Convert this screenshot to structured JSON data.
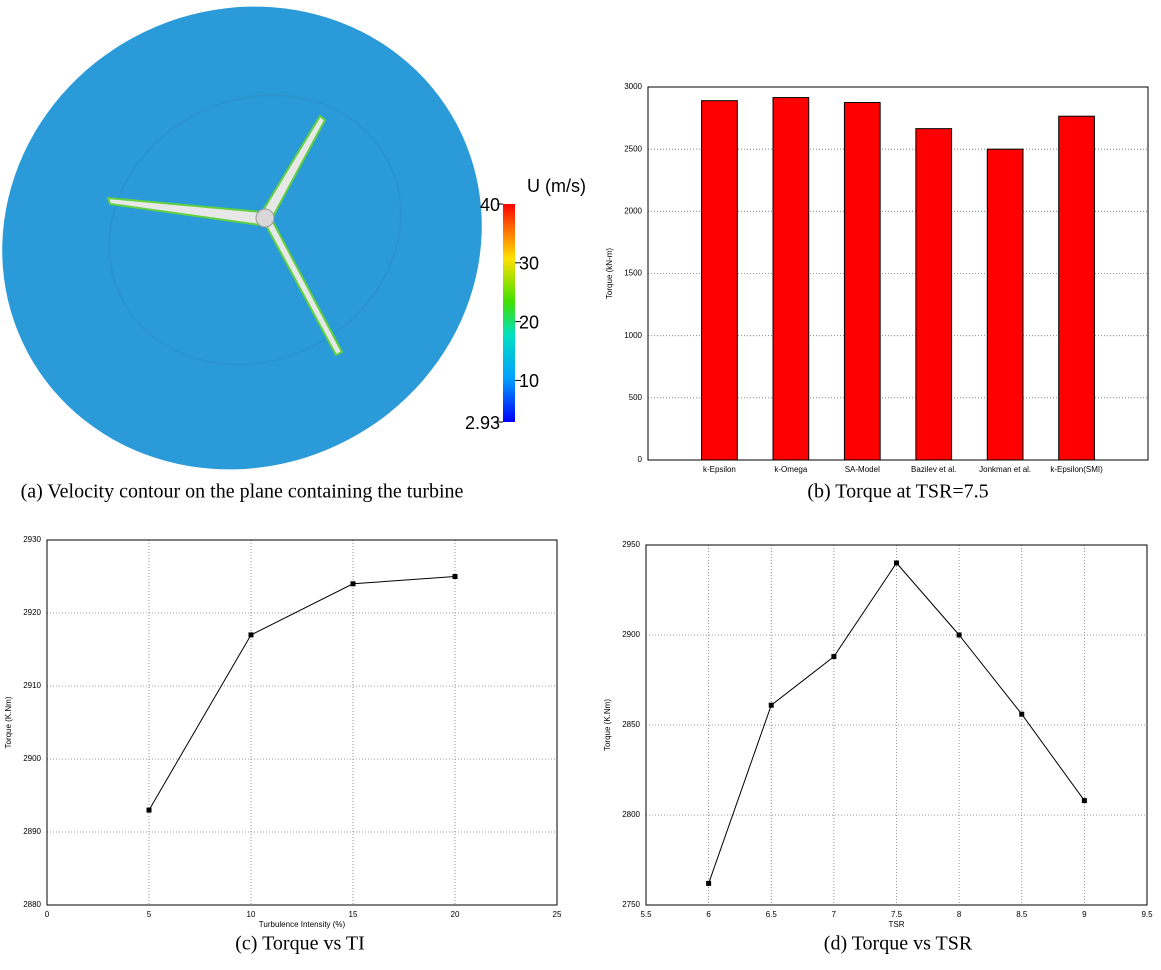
{
  "chart_data": [
    {
      "type": "contour",
      "caption": "(a) Velocity contour on the plane containing the turbine",
      "colorbar_label": "U (m/s)",
      "clim": [
        2.93,
        40
      ],
      "cticks": [
        2.93,
        10,
        20,
        30,
        40
      ]
    },
    {
      "type": "bar",
      "caption": "(b) Torque at TSR=7.5",
      "ylabel": "Torque (kN-m)",
      "categories": [
        "k-Epsilon",
        "k-Omega",
        "SA-Model",
        "Bazilev et al.",
        "Jonkman et al.",
        "k-Epsilon(SMI)"
      ],
      "values": [
        2890,
        2915,
        2875,
        2665,
        2500,
        2765
      ],
      "color": "#ff0000",
      "ylim": [
        0,
        3000
      ],
      "yticks": [
        0,
        500,
        1000,
        1500,
        2000,
        2500,
        3000
      ],
      "grid": true
    },
    {
      "type": "line",
      "caption": "(c) Torque vs TI",
      "xlabel": "Turbulence Intensity (%)",
      "ylabel": "Torque (K.Nm)",
      "x": [
        5,
        10,
        15,
        20
      ],
      "values": [
        2893,
        2917,
        2924,
        2925
      ],
      "color": "#000000",
      "xlim": [
        0,
        25
      ],
      "xticks": [
        0,
        5,
        10,
        15,
        20,
        25
      ],
      "ylim": [
        2880,
        2930
      ],
      "yticks": [
        2880,
        2890,
        2900,
        2910,
        2920,
        2930
      ],
      "grid": true
    },
    {
      "type": "line",
      "caption": "(d) Torque vs TSR",
      "xlabel": "TSR",
      "ylabel": "Torque (K.Nm)",
      "x": [
        6,
        6.5,
        7,
        7.5,
        8,
        8.5,
        9
      ],
      "values": [
        2762,
        2861,
        2888,
        2940,
        2900,
        2856,
        2808
      ],
      "color": "#000000",
      "xlim": [
        5.5,
        9.5
      ],
      "xticks": [
        5.5,
        6,
        6.5,
        7,
        7.5,
        8,
        8.5,
        9,
        9.5
      ],
      "ylim": [
        2750,
        2950
      ],
      "yticks": [
        2750,
        2800,
        2850,
        2900,
        2950
      ],
      "grid": true
    }
  ]
}
